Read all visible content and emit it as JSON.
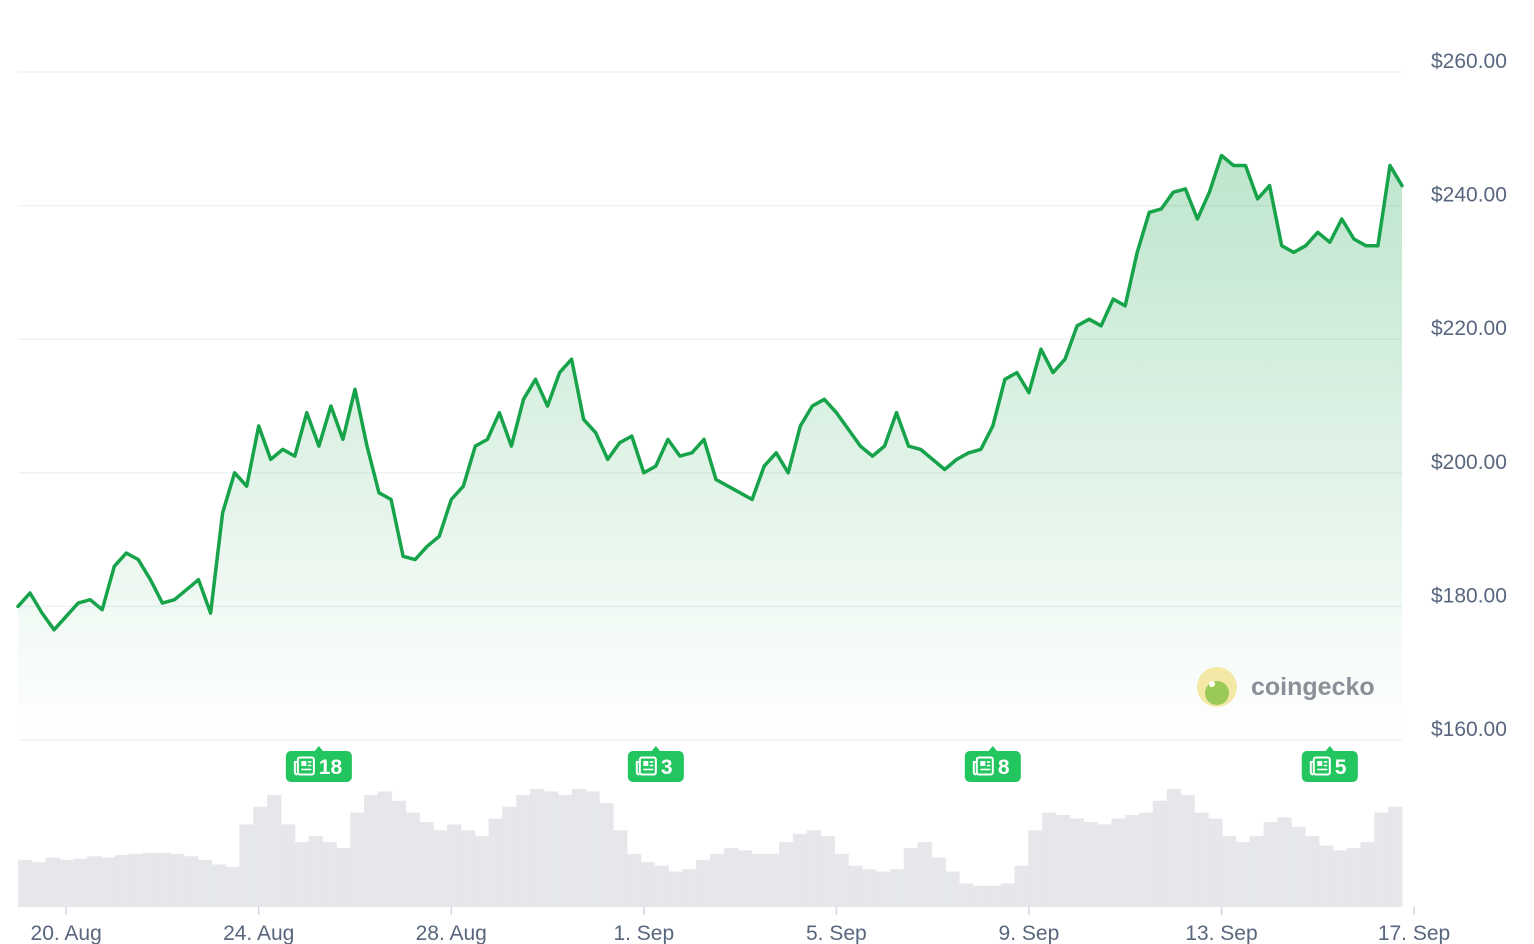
{
  "chart_data": {
    "type": "line",
    "series": [
      {
        "color": "#16a34a",
        "points": [
          [
            "2024-08-19 00:00",
            180.0
          ],
          [
            "2024-08-19 06:00",
            182.0
          ],
          [
            "2024-08-19 12:00",
            179.0
          ],
          [
            "2024-08-19 18:00",
            176.5
          ],
          [
            "2024-08-20 00:00",
            178.5
          ],
          [
            "2024-08-20 06:00",
            180.5
          ],
          [
            "2024-08-20 12:00",
            181.0
          ],
          [
            "2024-08-20 18:00",
            179.5
          ],
          [
            "2024-08-21 00:00",
            186.0
          ],
          [
            "2024-08-21 06:00",
            188.0
          ],
          [
            "2024-08-21 12:00",
            187.0
          ],
          [
            "2024-08-21 18:00",
            184.0
          ],
          [
            "2024-08-22 00:00",
            180.5
          ],
          [
            "2024-08-22 06:00",
            181.0
          ],
          [
            "2024-08-22 12:00",
            182.5
          ],
          [
            "2024-08-22 18:00",
            184.0
          ],
          [
            "2024-08-23 00:00",
            179.0
          ],
          [
            "2024-08-23 06:00",
            194.0
          ],
          [
            "2024-08-23 12:00",
            200.0
          ],
          [
            "2024-08-23 18:00",
            198.0
          ],
          [
            "2024-08-24 00:00",
            207.0
          ],
          [
            "2024-08-24 06:00",
            202.0
          ],
          [
            "2024-08-24 12:00",
            203.5
          ],
          [
            "2024-08-24 18:00",
            202.5
          ],
          [
            "2024-08-25 00:00",
            209.0
          ],
          [
            "2024-08-25 06:00",
            204.0
          ],
          [
            "2024-08-25 12:00",
            210.0
          ],
          [
            "2024-08-25 18:00",
            205.0
          ],
          [
            "2024-08-26 00:00",
            212.5
          ],
          [
            "2024-08-26 06:00",
            204.0
          ],
          [
            "2024-08-26 12:00",
            197.0
          ],
          [
            "2024-08-26 18:00",
            196.0
          ],
          [
            "2024-08-27 00:00",
            187.5
          ],
          [
            "2024-08-27 06:00",
            187.0
          ],
          [
            "2024-08-27 12:00",
            189.0
          ],
          [
            "2024-08-27 18:00",
            190.5
          ],
          [
            "2024-08-28 00:00",
            196.0
          ],
          [
            "2024-08-28 06:00",
            198.0
          ],
          [
            "2024-08-28 12:00",
            204.0
          ],
          [
            "2024-08-28 18:00",
            205.0
          ],
          [
            "2024-08-29 00:00",
            209.0
          ],
          [
            "2024-08-29 06:00",
            204.0
          ],
          [
            "2024-08-29 12:00",
            211.0
          ],
          [
            "2024-08-29 18:00",
            214.0
          ],
          [
            "2024-08-30 00:00",
            210.0
          ],
          [
            "2024-08-30 06:00",
            215.0
          ],
          [
            "2024-08-30 12:00",
            217.0
          ],
          [
            "2024-08-30 18:00",
            208.0
          ],
          [
            "2024-08-31 00:00",
            206.0
          ],
          [
            "2024-08-31 06:00",
            202.0
          ],
          [
            "2024-08-31 12:00",
            204.5
          ],
          [
            "2024-08-31 18:00",
            205.5
          ],
          [
            "2024-09-01 00:00",
            200.0
          ],
          [
            "2024-09-01 06:00",
            201.0
          ],
          [
            "2024-09-01 12:00",
            205.0
          ],
          [
            "2024-09-01 18:00",
            202.5
          ],
          [
            "2024-09-02 00:00",
            203.0
          ],
          [
            "2024-09-02 06:00",
            205.0
          ],
          [
            "2024-09-02 12:00",
            199.0
          ],
          [
            "2024-09-02 18:00",
            198.0
          ],
          [
            "2024-09-03 00:00",
            197.0
          ],
          [
            "2024-09-03 06:00",
            196.0
          ],
          [
            "2024-09-03 12:00",
            201.0
          ],
          [
            "2024-09-03 18:00",
            203.0
          ],
          [
            "2024-09-04 00:00",
            200.0
          ],
          [
            "2024-09-04 06:00",
            207.0
          ],
          [
            "2024-09-04 12:00",
            210.0
          ],
          [
            "2024-09-04 18:00",
            211.0
          ],
          [
            "2024-09-05 00:00",
            209.0
          ],
          [
            "2024-09-05 06:00",
            206.5
          ],
          [
            "2024-09-05 12:00",
            204.0
          ],
          [
            "2024-09-05 18:00",
            202.5
          ],
          [
            "2024-09-06 00:00",
            204.0
          ],
          [
            "2024-09-06 06:00",
            209.0
          ],
          [
            "2024-09-06 12:00",
            204.0
          ],
          [
            "2024-09-06 18:00",
            203.5
          ],
          [
            "2024-09-07 00:00",
            202.0
          ],
          [
            "2024-09-07 06:00",
            200.5
          ],
          [
            "2024-09-07 12:00",
            202.0
          ],
          [
            "2024-09-07 18:00",
            203.0
          ],
          [
            "2024-09-08 00:00",
            203.5
          ],
          [
            "2024-09-08 06:00",
            207.0
          ],
          [
            "2024-09-08 12:00",
            214.0
          ],
          [
            "2024-09-08 18:00",
            215.0
          ],
          [
            "2024-09-09 00:00",
            212.0
          ],
          [
            "2024-09-09 06:00",
            218.5
          ],
          [
            "2024-09-09 12:00",
            215.0
          ],
          [
            "2024-09-09 18:00",
            217.0
          ],
          [
            "2024-09-10 00:00",
            222.0
          ],
          [
            "2024-09-10 06:00",
            223.0
          ],
          [
            "2024-09-10 12:00",
            222.0
          ],
          [
            "2024-09-10 18:00",
            226.0
          ],
          [
            "2024-09-11 00:00",
            225.0
          ],
          [
            "2024-09-11 06:00",
            233.0
          ],
          [
            "2024-09-11 12:00",
            239.0
          ],
          [
            "2024-09-11 18:00",
            239.5
          ],
          [
            "2024-09-12 00:00",
            242.0
          ],
          [
            "2024-09-12 06:00",
            242.5
          ],
          [
            "2024-09-12 12:00",
            238.0
          ],
          [
            "2024-09-12 18:00",
            242.0
          ],
          [
            "2024-09-13 00:00",
            247.5
          ],
          [
            "2024-09-13 06:00",
            246.0
          ],
          [
            "2024-09-13 12:00",
            246.0
          ],
          [
            "2024-09-13 18:00",
            241.0
          ],
          [
            "2024-09-14 00:00",
            243.0
          ],
          [
            "2024-09-14 06:00",
            234.0
          ],
          [
            "2024-09-14 12:00",
            233.0
          ],
          [
            "2024-09-14 18:00",
            234.0
          ],
          [
            "2024-09-15 00:00",
            236.0
          ],
          [
            "2024-09-15 06:00",
            234.5
          ],
          [
            "2024-09-15 12:00",
            238.0
          ],
          [
            "2024-09-15 18:00",
            235.0
          ],
          [
            "2024-09-16 00:00",
            234.0
          ],
          [
            "2024-09-16 06:00",
            234.0
          ],
          [
            "2024-09-16 12:00",
            246.0
          ],
          [
            "2024-09-16 18:00",
            243.0
          ]
        ]
      }
    ],
    "xlim": [
      "2024-08-19 00:00",
      "2024-09-16 18:00"
    ],
    "x_ticks": [
      {
        "x": "2024-08-20",
        "label": "20. Aug"
      },
      {
        "x": "2024-08-24",
        "label": "24. Aug"
      },
      {
        "x": "2024-08-28",
        "label": "28. Aug"
      },
      {
        "x": "2024-09-01",
        "label": "1. Sep"
      },
      {
        "x": "2024-09-05",
        "label": "5. Sep"
      },
      {
        "x": "2024-09-09",
        "label": "9. Sep"
      },
      {
        "x": "2024-09-13",
        "label": "13. Sep"
      },
      {
        "x": "2024-09-17",
        "label": "17. Sep"
      }
    ],
    "ylim": [
      160,
      260
    ],
    "y_ticks": [
      {
        "y": 260,
        "label": "$260.00"
      },
      {
        "y": 240,
        "label": "$240.00"
      },
      {
        "y": 220,
        "label": "$220.00"
      },
      {
        "y": 200,
        "label": "$200.00"
      },
      {
        "y": 180,
        "label": "$180.00"
      },
      {
        "y": 160,
        "label": "$160.00"
      }
    ],
    "grid": true,
    "area_fill": true,
    "news_markers": [
      {
        "x": "2024-08-25 06:00",
        "count": "18"
      },
      {
        "x": "2024-09-01 06:00",
        "count": "3"
      },
      {
        "x": "2024-09-08 06:00",
        "count": "8"
      },
      {
        "x": "2024-09-15 06:00",
        "count": "5"
      }
    ],
    "volume": {
      "color": "#e5e7eb",
      "values": [
        0.4,
        0.38,
        0.42,
        0.4,
        0.41,
        0.43,
        0.42,
        0.44,
        0.45,
        0.46,
        0.46,
        0.45,
        0.43,
        0.4,
        0.36,
        0.34,
        0.7,
        0.85,
        0.95,
        0.7,
        0.55,
        0.6,
        0.55,
        0.5,
        0.8,
        0.95,
        0.98,
        0.9,
        0.8,
        0.72,
        0.65,
        0.7,
        0.65,
        0.6,
        0.75,
        0.85,
        0.95,
        1.0,
        0.98,
        0.95,
        1.0,
        0.98,
        0.88,
        0.65,
        0.45,
        0.38,
        0.35,
        0.3,
        0.32,
        0.4,
        0.45,
        0.5,
        0.48,
        0.45,
        0.45,
        0.55,
        0.62,
        0.65,
        0.6,
        0.45,
        0.35,
        0.32,
        0.3,
        0.32,
        0.5,
        0.55,
        0.42,
        0.3,
        0.2,
        0.18,
        0.18,
        0.2,
        0.35,
        0.65,
        0.8,
        0.78,
        0.75,
        0.72,
        0.7,
        0.75,
        0.78,
        0.8,
        0.9,
        1.0,
        0.95,
        0.8,
        0.75,
        0.6,
        0.55,
        0.6,
        0.72,
        0.76,
        0.68,
        0.6,
        0.52,
        0.48,
        0.5,
        0.55,
        0.8,
        0.85
      ]
    },
    "watermark": "coingecko"
  },
  "colors": {
    "line": "#16a34a",
    "grid": "#eff2f5",
    "axis_text": "#58667e",
    "news_badge": "#22c55e"
  }
}
